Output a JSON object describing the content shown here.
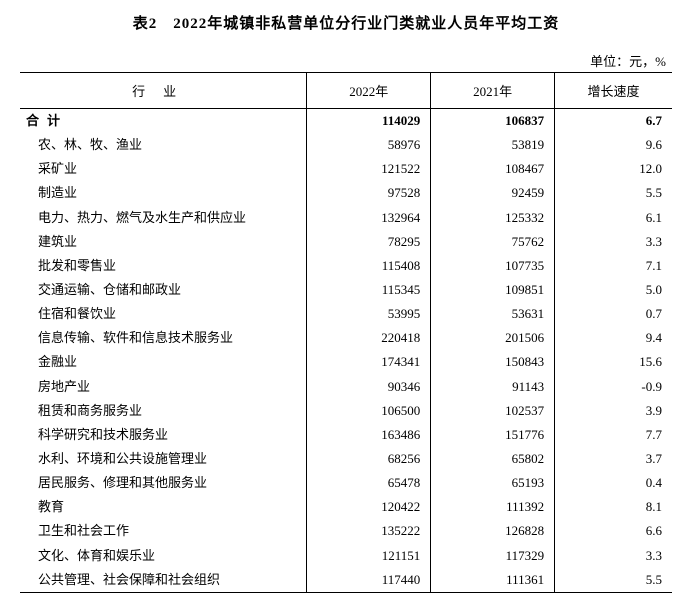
{
  "title": "表2　2022年城镇非私营单位分行业门类就业人员年平均工资",
  "unit": "单位：元，%",
  "columns": [
    "行业",
    "2022年",
    "2021年",
    "增长速度"
  ],
  "total_row": {
    "label": "合计",
    "y2022": "114029",
    "y2021": "106837",
    "growth": "6.7"
  },
  "rows": [
    {
      "label": "农、林、牧、渔业",
      "y2022": "58976",
      "y2021": "53819",
      "growth": "9.6"
    },
    {
      "label": "采矿业",
      "y2022": "121522",
      "y2021": "108467",
      "growth": "12.0"
    },
    {
      "label": "制造业",
      "y2022": "97528",
      "y2021": "92459",
      "growth": "5.5"
    },
    {
      "label": "电力、热力、燃气及水生产和供应业",
      "y2022": "132964",
      "y2021": "125332",
      "growth": "6.1"
    },
    {
      "label": "建筑业",
      "y2022": "78295",
      "y2021": "75762",
      "growth": "3.3"
    },
    {
      "label": "批发和零售业",
      "y2022": "115408",
      "y2021": "107735",
      "growth": "7.1"
    },
    {
      "label": "交通运输、仓储和邮政业",
      "y2022": "115345",
      "y2021": "109851",
      "growth": "5.0"
    },
    {
      "label": "住宿和餐饮业",
      "y2022": "53995",
      "y2021": "53631",
      "growth": "0.7"
    },
    {
      "label": "信息传输、软件和信息技术服务业",
      "y2022": "220418",
      "y2021": "201506",
      "growth": "9.4"
    },
    {
      "label": "金融业",
      "y2022": "174341",
      "y2021": "150843",
      "growth": "15.6"
    },
    {
      "label": "房地产业",
      "y2022": "90346",
      "y2021": "91143",
      "growth": "-0.9"
    },
    {
      "label": "租赁和商务服务业",
      "y2022": "106500",
      "y2021": "102537",
      "growth": "3.9"
    },
    {
      "label": "科学研究和技术服务业",
      "y2022": "163486",
      "y2021": "151776",
      "growth": "7.7"
    },
    {
      "label": "水利、环境和公共设施管理业",
      "y2022": "68256",
      "y2021": "65802",
      "growth": "3.7"
    },
    {
      "label": "居民服务、修理和其他服务业",
      "y2022": "65478",
      "y2021": "65193",
      "growth": "0.4"
    },
    {
      "label": "教育",
      "y2022": "120422",
      "y2021": "111392",
      "growth": "8.1"
    },
    {
      "label": "卫生和社会工作",
      "y2022": "135222",
      "y2021": "126828",
      "growth": "6.6"
    },
    {
      "label": "文化、体育和娱乐业",
      "y2022": "121151",
      "y2021": "117329",
      "growth": "3.3"
    },
    {
      "label": "公共管理、社会保障和社会组织",
      "y2022": "117440",
      "y2021": "111361",
      "growth": "5.5"
    }
  ],
  "style": {
    "background_color": "#ffffff",
    "text_color": "#000000",
    "border_color": "#000000",
    "font_family": "SimSun",
    "title_fontsize": 15,
    "body_fontsize": 13,
    "col_widths_pct": [
      44,
      19,
      19,
      18
    ]
  }
}
